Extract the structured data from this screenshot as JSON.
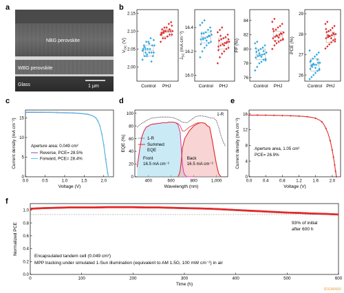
{
  "panel_labels": [
    "a",
    "b",
    "c",
    "d",
    "e",
    "f"
  ],
  "sem": {
    "layers": [
      "NBG perovskite",
      "WBG perovskite",
      "Glass"
    ],
    "scalebar": "1 μm"
  },
  "watermark": "3DGM0000",
  "colors": {
    "control": "#2ba8e0",
    "phj": "#e02b2b",
    "reverse": "#7a5fc8",
    "forward": "#5bc8e6",
    "front": "#e33fa8",
    "back": "#e02b2b",
    "summed": "#e02b2b",
    "one_minus_r": "#333333",
    "stability": "#e02b2b",
    "dashed": "#999999"
  },
  "chart_data": [
    {
      "id": "b1",
      "type": "scatter",
      "ylabel": "Voc (V)",
      "ylabel_main": "V",
      "ylabel_sub": "OC",
      "ylabel_unit": " (V)",
      "categories": [
        "Control",
        "PHJ"
      ],
      "ylim": [
        1.96,
        2.16
      ],
      "yticks": [
        "2.00",
        "2.05",
        "2.10",
        "2.15"
      ],
      "yticks_num": [
        2.0,
        2.05,
        2.1,
        2.15
      ],
      "series": [
        {
          "category": "Control",
          "box": [
            2.03,
            2.045,
            2.06
          ],
          "values": [
            2.02,
            2.03,
            2.03,
            2.04,
            2.04,
            2.04,
            2.05,
            2.05,
            2.05,
            2.05,
            2.06,
            2.06,
            2.06,
            2.07,
            2.07,
            2.08,
            2.03,
            2.045,
            2.055,
            2.035,
            2.065,
            2.015,
            2.075,
            2.05,
            2.04
          ]
        },
        {
          "category": "PHJ",
          "box": [
            2.085,
            2.095,
            2.105
          ],
          "values": [
            2.07,
            2.08,
            2.08,
            2.085,
            2.09,
            2.09,
            2.09,
            2.095,
            2.1,
            2.1,
            2.1,
            2.1,
            2.105,
            2.11,
            2.11,
            2.12,
            2.125,
            2.09,
            2.095,
            2.1,
            2.085,
            2.105,
            2.115,
            2.095,
            2.1
          ]
        }
      ]
    },
    {
      "id": "b2",
      "type": "scatter",
      "ylabel": "Jsc (mA cm-2)",
      "ylabel_main": "J",
      "ylabel_sub": "SC",
      "ylabel_unit": " (mA cm⁻²)",
      "categories": [
        "Control",
        "PHJ"
      ],
      "ylim": [
        15.95,
        16.55
      ],
      "yticks": [
        "16.0",
        "16.2",
        "16.4"
      ],
      "yticks_num": [
        16.0,
        16.2,
        16.4
      ],
      "series": [
        {
          "category": "Control",
          "box": [
            16.27,
            16.32,
            16.36
          ],
          "values": [
            16.15,
            16.2,
            16.23,
            16.25,
            16.27,
            16.28,
            16.3,
            16.3,
            16.31,
            16.32,
            16.33,
            16.34,
            16.35,
            16.35,
            16.36,
            16.38,
            16.4,
            16.42,
            16.44,
            16.46,
            16.29,
            16.33,
            16.37,
            16.26,
            16.31
          ]
        },
        {
          "category": "PHJ",
          "box": [
            16.22,
            16.27,
            16.31
          ],
          "values": [
            16.1,
            16.15,
            16.18,
            16.2,
            16.22,
            16.23,
            16.24,
            16.25,
            16.26,
            16.27,
            16.28,
            16.28,
            16.29,
            16.3,
            16.31,
            16.32,
            16.34,
            16.36,
            16.38,
            16.4,
            16.25,
            16.27,
            16.3,
            16.21,
            16.33
          ]
        }
      ]
    },
    {
      "id": "b3",
      "type": "scatter",
      "ylabel": "FF (%)",
      "ylabel_main": "FF (%)",
      "ylabel_sub": "",
      "ylabel_unit": "",
      "categories": [
        "Control",
        "PHJ"
      ],
      "ylim": [
        75.5,
        85.5
      ],
      "yticks": [
        "76",
        "78",
        "80",
        "82",
        "84"
      ],
      "yticks_num": [
        76,
        78,
        80,
        82,
        84
      ],
      "series": [
        {
          "category": "Control",
          "box": [
            78.5,
            79.2,
            80.0
          ],
          "values": [
            77.0,
            77.5,
            78.0,
            78.2,
            78.5,
            78.6,
            78.8,
            79.0,
            79.1,
            79.2,
            79.3,
            79.5,
            79.6,
            79.8,
            80.0,
            80.2,
            80.5,
            80.8,
            81.0,
            79.4,
            78.9,
            79.7,
            78.4,
            80.1,
            79.0
          ]
        },
        {
          "category": "PHJ",
          "box": [
            81.2,
            81.8,
            82.5
          ],
          "values": [
            80.0,
            80.5,
            80.8,
            81.0,
            81.2,
            81.4,
            81.5,
            81.7,
            81.8,
            82.0,
            82.1,
            82.3,
            82.5,
            82.7,
            83.0,
            83.2,
            83.5,
            83.8,
            84.2,
            81.9,
            81.6,
            82.2,
            81.3,
            82.8,
            81.1
          ]
        }
      ]
    },
    {
      "id": "b4",
      "type": "scatter",
      "ylabel": "PCE (%)",
      "ylabel_main": "PCE (%)",
      "ylabel_sub": "",
      "ylabel_unit": "",
      "categories": [
        "Control",
        "PHJ"
      ],
      "ylim": [
        25.7,
        29.2
      ],
      "yticks": [
        "26",
        "27",
        "28",
        "29"
      ],
      "yticks_num": [
        26,
        27,
        28,
        29
      ],
      "series": [
        {
          "category": "Control",
          "box": [
            26.2,
            26.5,
            26.8
          ],
          "values": [
            25.8,
            25.9,
            26.0,
            26.1,
            26.2,
            26.3,
            26.3,
            26.4,
            26.5,
            26.5,
            26.6,
            26.6,
            26.7,
            26.8,
            26.9,
            27.0,
            27.1,
            27.2,
            26.45,
            26.55,
            26.35,
            26.75,
            26.25,
            26.65,
            26.5
          ]
        },
        {
          "category": "PHJ",
          "box": [
            27.6,
            27.9,
            28.1
          ],
          "values": [
            27.3,
            27.4,
            27.5,
            27.6,
            27.7,
            27.75,
            27.8,
            27.85,
            27.9,
            27.95,
            28.0,
            28.0,
            28.1,
            28.15,
            28.2,
            28.3,
            28.4,
            28.5,
            28.6,
            27.9,
            27.8,
            28.05,
            27.65,
            28.25,
            27.95
          ]
        }
      ]
    },
    {
      "id": "c",
      "type": "line",
      "xlabel": "Voltage (V)",
      "ylabel": "Current density (mA cm-2)",
      "ylabel_text": "Current density (mA cm⁻²)",
      "xlim": [
        0,
        2.25
      ],
      "ylim": [
        0,
        17
      ],
      "xticks": [
        "0.0",
        "0.5",
        "1.0",
        "1.5",
        "2.0"
      ],
      "xticks_num": [
        0,
        0.5,
        1.0,
        1.5,
        2.0
      ],
      "yticks": [
        "0",
        "5",
        "10",
        "15"
      ],
      "yticks_num": [
        0,
        5,
        10,
        15
      ],
      "annotations": [
        "Aperture area: 0.049 cm²"
      ],
      "legend": [
        {
          "name": "Reverse, PCE= 28.5%"
        },
        {
          "name": "Forward, PCE= 28.4%"
        }
      ],
      "series": [
        {
          "name": "Reverse, PCE= 28.5%",
          "x": [
            0,
            0.2,
            0.4,
            0.6,
            0.8,
            1.0,
            1.2,
            1.4,
            1.6,
            1.7,
            1.8,
            1.85,
            1.9,
            1.95,
            2.0,
            2.05,
            2.1,
            2.12
          ],
          "y": [
            16.4,
            16.4,
            16.4,
            16.38,
            16.35,
            16.3,
            16.25,
            16.15,
            15.9,
            15.6,
            15.0,
            14.2,
            13.0,
            11.0,
            8.2,
            4.5,
            1.0,
            0
          ]
        },
        {
          "name": "Forward, PCE= 28.4%",
          "x": [
            0,
            0.2,
            0.4,
            0.6,
            0.8,
            1.0,
            1.2,
            1.4,
            1.6,
            1.7,
            1.8,
            1.85,
            1.9,
            1.95,
            2.0,
            2.05,
            2.1,
            2.12
          ],
          "y": [
            16.5,
            16.5,
            16.48,
            16.45,
            16.42,
            16.38,
            16.3,
            16.2,
            15.95,
            15.65,
            15.05,
            14.3,
            13.0,
            10.9,
            8.0,
            4.2,
            0.8,
            0
          ]
        }
      ]
    },
    {
      "id": "d",
      "type": "line",
      "xlabel": "Wavelength (nm)",
      "ylabel": "EQE (%)",
      "xlim": [
        280,
        1100
      ],
      "ylim": [
        0,
        105
      ],
      "xticks": [
        "400",
        "600",
        "800",
        "1,000"
      ],
      "xticks_num": [
        400,
        600,
        800,
        1000
      ],
      "yticks": [
        "0",
        "20",
        "40",
        "60",
        "80",
        "100"
      ],
      "yticks_num": [
        0,
        20,
        40,
        60,
        80,
        100
      ],
      "legend": [
        {
          "name": "1-R"
        },
        {
          "name": "Summed EQE"
        }
      ],
      "annotations": [
        "1-R",
        "Front",
        "16.5 mA cm⁻²",
        "Back",
        "16.5 mA cm⁻²"
      ],
      "series": [
        {
          "name": "Front",
          "x": [
            300,
            320,
            340,
            360,
            380,
            400,
            420,
            440,
            460,
            480,
            500,
            520,
            540,
            560,
            580,
            600,
            620,
            640,
            660,
            680,
            690,
            700,
            710,
            720,
            740,
            760,
            780,
            800
          ],
          "y": [
            15,
            40,
            62,
            72,
            78,
            80,
            82,
            83,
            83,
            84,
            84,
            85,
            85,
            85,
            86,
            86,
            86,
            85,
            82,
            70,
            45,
            20,
            8,
            3,
            0,
            0,
            0,
            0
          ]
        },
        {
          "name": "Back",
          "x": [
            660,
            670,
            680,
            690,
            700,
            720,
            740,
            760,
            780,
            800,
            820,
            840,
            860,
            880,
            900,
            920,
            940,
            960,
            980,
            1000,
            1020,
            1040
          ],
          "y": [
            0,
            3,
            10,
            25,
            45,
            60,
            66,
            72,
            76,
            80,
            82,
            84,
            85,
            85,
            84,
            80,
            78,
            60,
            40,
            20,
            5,
            0
          ]
        },
        {
          "name": "Summed EQE",
          "x": [
            300,
            320,
            340,
            360,
            380,
            400,
            420,
            440,
            460,
            480,
            500,
            520,
            540,
            560,
            580,
            600,
            620,
            640,
            660,
            680,
            700,
            720,
            740,
            760,
            780,
            800,
            820,
            840,
            860,
            880,
            900,
            920,
            940,
            960,
            980,
            1000,
            1020,
            1040
          ],
          "y": [
            15,
            40,
            62,
            72,
            78,
            80,
            82,
            83,
            83,
            84,
            84,
            85,
            85,
            85,
            86,
            86,
            86,
            85,
            84,
            80,
            72,
            72,
            75,
            78,
            80,
            82,
            84,
            85,
            85,
            85,
            84,
            80,
            78,
            60,
            40,
            20,
            5,
            0
          ]
        },
        {
          "name": "1-R",
          "x": [
            300,
            340,
            380,
            420,
            460,
            500,
            540,
            580,
            620,
            660,
            700,
            740,
            780,
            820,
            860,
            900,
            940,
            980,
            1000,
            1020,
            1040,
            1060,
            1080
          ],
          "y": [
            78,
            84,
            88,
            92,
            93,
            94,
            94,
            94,
            93,
            90,
            86,
            85,
            90,
            95,
            96,
            95,
            93,
            92,
            88,
            78,
            65,
            55,
            48
          ]
        }
      ]
    },
    {
      "id": "e",
      "type": "line",
      "xlabel": "Voltage (V)",
      "ylabel": "Current density (mA cm-2)",
      "ylabel_text": "Current density (mA cm⁻²)",
      "xlim": [
        0,
        2.2
      ],
      "ylim": [
        0,
        17
      ],
      "xticks": [
        "0.0",
        "0.4",
        "0.8",
        "1.2",
        "1.6",
        "2.0"
      ],
      "xticks_num": [
        0,
        0.4,
        0.8,
        1.2,
        1.6,
        2.0
      ],
      "yticks": [
        "0",
        "4",
        "8",
        "12",
        "16"
      ],
      "yticks_num": [
        0,
        4,
        8,
        12,
        16
      ],
      "annotations": [
        "Aperture area, 1.05 cm²",
        "PCE= 26.9%"
      ],
      "series": [
        {
          "name": "J-V",
          "x": [
            0,
            0.1,
            0.2,
            0.3,
            0.4,
            0.5,
            0.6,
            0.7,
            0.8,
            0.9,
            1.0,
            1.1,
            1.2,
            1.3,
            1.4,
            1.5,
            1.6,
            1.7,
            1.75,
            1.8,
            1.85,
            1.9,
            1.95,
            2.0,
            2.03,
            2.06,
            2.08,
            2.1
          ],
          "y": [
            15.7,
            15.7,
            15.7,
            15.7,
            15.68,
            15.67,
            15.65,
            15.63,
            15.6,
            15.58,
            15.55,
            15.5,
            15.45,
            15.38,
            15.3,
            15.15,
            14.9,
            14.4,
            14.0,
            13.3,
            12.3,
            11.0,
            9.2,
            6.8,
            5.0,
            3.0,
            1.4,
            0
          ]
        }
      ]
    },
    {
      "id": "f",
      "type": "line",
      "xlabel": "Time (h)",
      "ylabel": "Normalized PCE",
      "xlim": [
        0,
        600
      ],
      "ylim": [
        0,
        1.1
      ],
      "xticks": [
        "0",
        "100",
        "200",
        "300",
        "400",
        "500",
        "600"
      ],
      "xticks_num": [
        0,
        100,
        200,
        300,
        400,
        500,
        600
      ],
      "yticks": [
        "0.0",
        "0.2",
        "0.4",
        "0.6",
        "0.8",
        "1.0"
      ],
      "yticks_num": [
        0,
        0.2,
        0.4,
        0.6,
        0.8,
        1.0
      ],
      "reference_line": 0.93,
      "annotations": [
        "93% of initial",
        "after 600 h",
        "Encapsulated tandem cell (0.049 cm²)",
        "MPP tracking under simulated 1-Sun illumination (equivalent to AM 1.5G, 100 mW cm⁻²) in air"
      ],
      "series": [
        {
          "name": "Stability",
          "x": [
            0,
            25,
            50,
            75,
            100,
            125,
            150,
            175,
            200,
            225,
            250,
            275,
            300,
            325,
            350,
            375,
            400,
            425,
            450,
            475,
            500,
            525,
            550,
            575,
            600
          ],
          "y": [
            1.02,
            1.03,
            1.035,
            1.04,
            1.04,
            1.04,
            1.045,
            1.045,
            1.045,
            1.04,
            1.04,
            1.035,
            1.03,
            1.025,
            1.02,
            1.01,
            1.0,
            0.99,
            0.98,
            0.97,
            0.96,
            0.955,
            0.945,
            0.94,
            0.93
          ]
        }
      ]
    }
  ]
}
